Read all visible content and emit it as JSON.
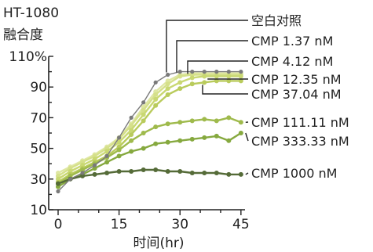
{
  "chart_data": {
    "type": "line",
    "title": "HT-1080",
    "subtitle": "融合度",
    "xlabel": "时间(hr)",
    "ylabel": "",
    "xlim": [
      0,
      46
    ],
    "ylim": [
      10,
      110
    ],
    "x_ticks": [
      0,
      15,
      30,
      45
    ],
    "y_ticks": [
      {
        "value": 10,
        "label": "10"
      },
      {
        "value": 30,
        "label": "30"
      },
      {
        "value": 50,
        "label": "50"
      },
      {
        "value": 70,
        "label": "70"
      },
      {
        "value": 90,
        "label": "90"
      },
      {
        "value": 110,
        "label": "110%"
      }
    ],
    "grid": false,
    "legend_position": "right",
    "x": [
      0,
      3,
      6,
      9,
      12,
      15,
      18,
      21,
      24,
      27,
      30,
      33,
      36,
      39,
      42,
      45
    ],
    "series": [
      {
        "name": "空白对照",
        "color": "#7a7a7a",
        "values": [
          22,
          30,
          34,
          39,
          45,
          57,
          70,
          80,
          93,
          98,
          100,
          100,
          100,
          100,
          100,
          100
        ]
      },
      {
        "name": "CMP 1.37 nM",
        "color": "#dfe7a3",
        "values": [
          34,
          38,
          42,
          46,
          51,
          57,
          66,
          77,
          87,
          94,
          98,
          99,
          99,
          99,
          99,
          99
        ]
      },
      {
        "name": "CMP 4.12 nM",
        "color": "#d5e08a",
        "values": [
          32,
          37,
          41,
          45,
          50,
          56,
          65,
          75,
          85,
          92,
          97,
          98,
          98,
          98,
          98,
          98
        ]
      },
      {
        "name": "CMP 12.35 nM",
        "color": "#c9d872",
        "values": [
          30,
          35,
          39,
          43,
          48,
          54,
          62,
          72,
          82,
          89,
          93,
          96,
          97,
          97,
          97,
          97
        ]
      },
      {
        "name": "CMP 37.04 nM",
        "color": "#b9cb5c",
        "values": [
          28,
          33,
          37,
          41,
          45,
          51,
          59,
          68,
          78,
          85,
          89,
          92,
          93,
          94,
          94,
          94
        ]
      },
      {
        "name": "CMP 111.11 nM",
        "color": "#9fba4c",
        "values": [
          27,
          32,
          36,
          40,
          44,
          49,
          55,
          60,
          64,
          66,
          67,
          68,
          69,
          68,
          70,
          67
        ]
      },
      {
        "name": "CMP 333.33 nM",
        "color": "#86a93f",
        "values": [
          25,
          30,
          33,
          37,
          41,
          45,
          48,
          50,
          53,
          54,
          55,
          56,
          57,
          58,
          55,
          60
        ]
      },
      {
        "name": "CMP 1000 nM",
        "color": "#556b38",
        "values": [
          27,
          30,
          32,
          33,
          34,
          35,
          35,
          36,
          36,
          35,
          35,
          34,
          34,
          34,
          33,
          33
        ]
      }
    ],
    "legend_anchor_x": [
      27,
      30,
      30,
      36,
      36,
      45,
      45,
      45
    ]
  }
}
